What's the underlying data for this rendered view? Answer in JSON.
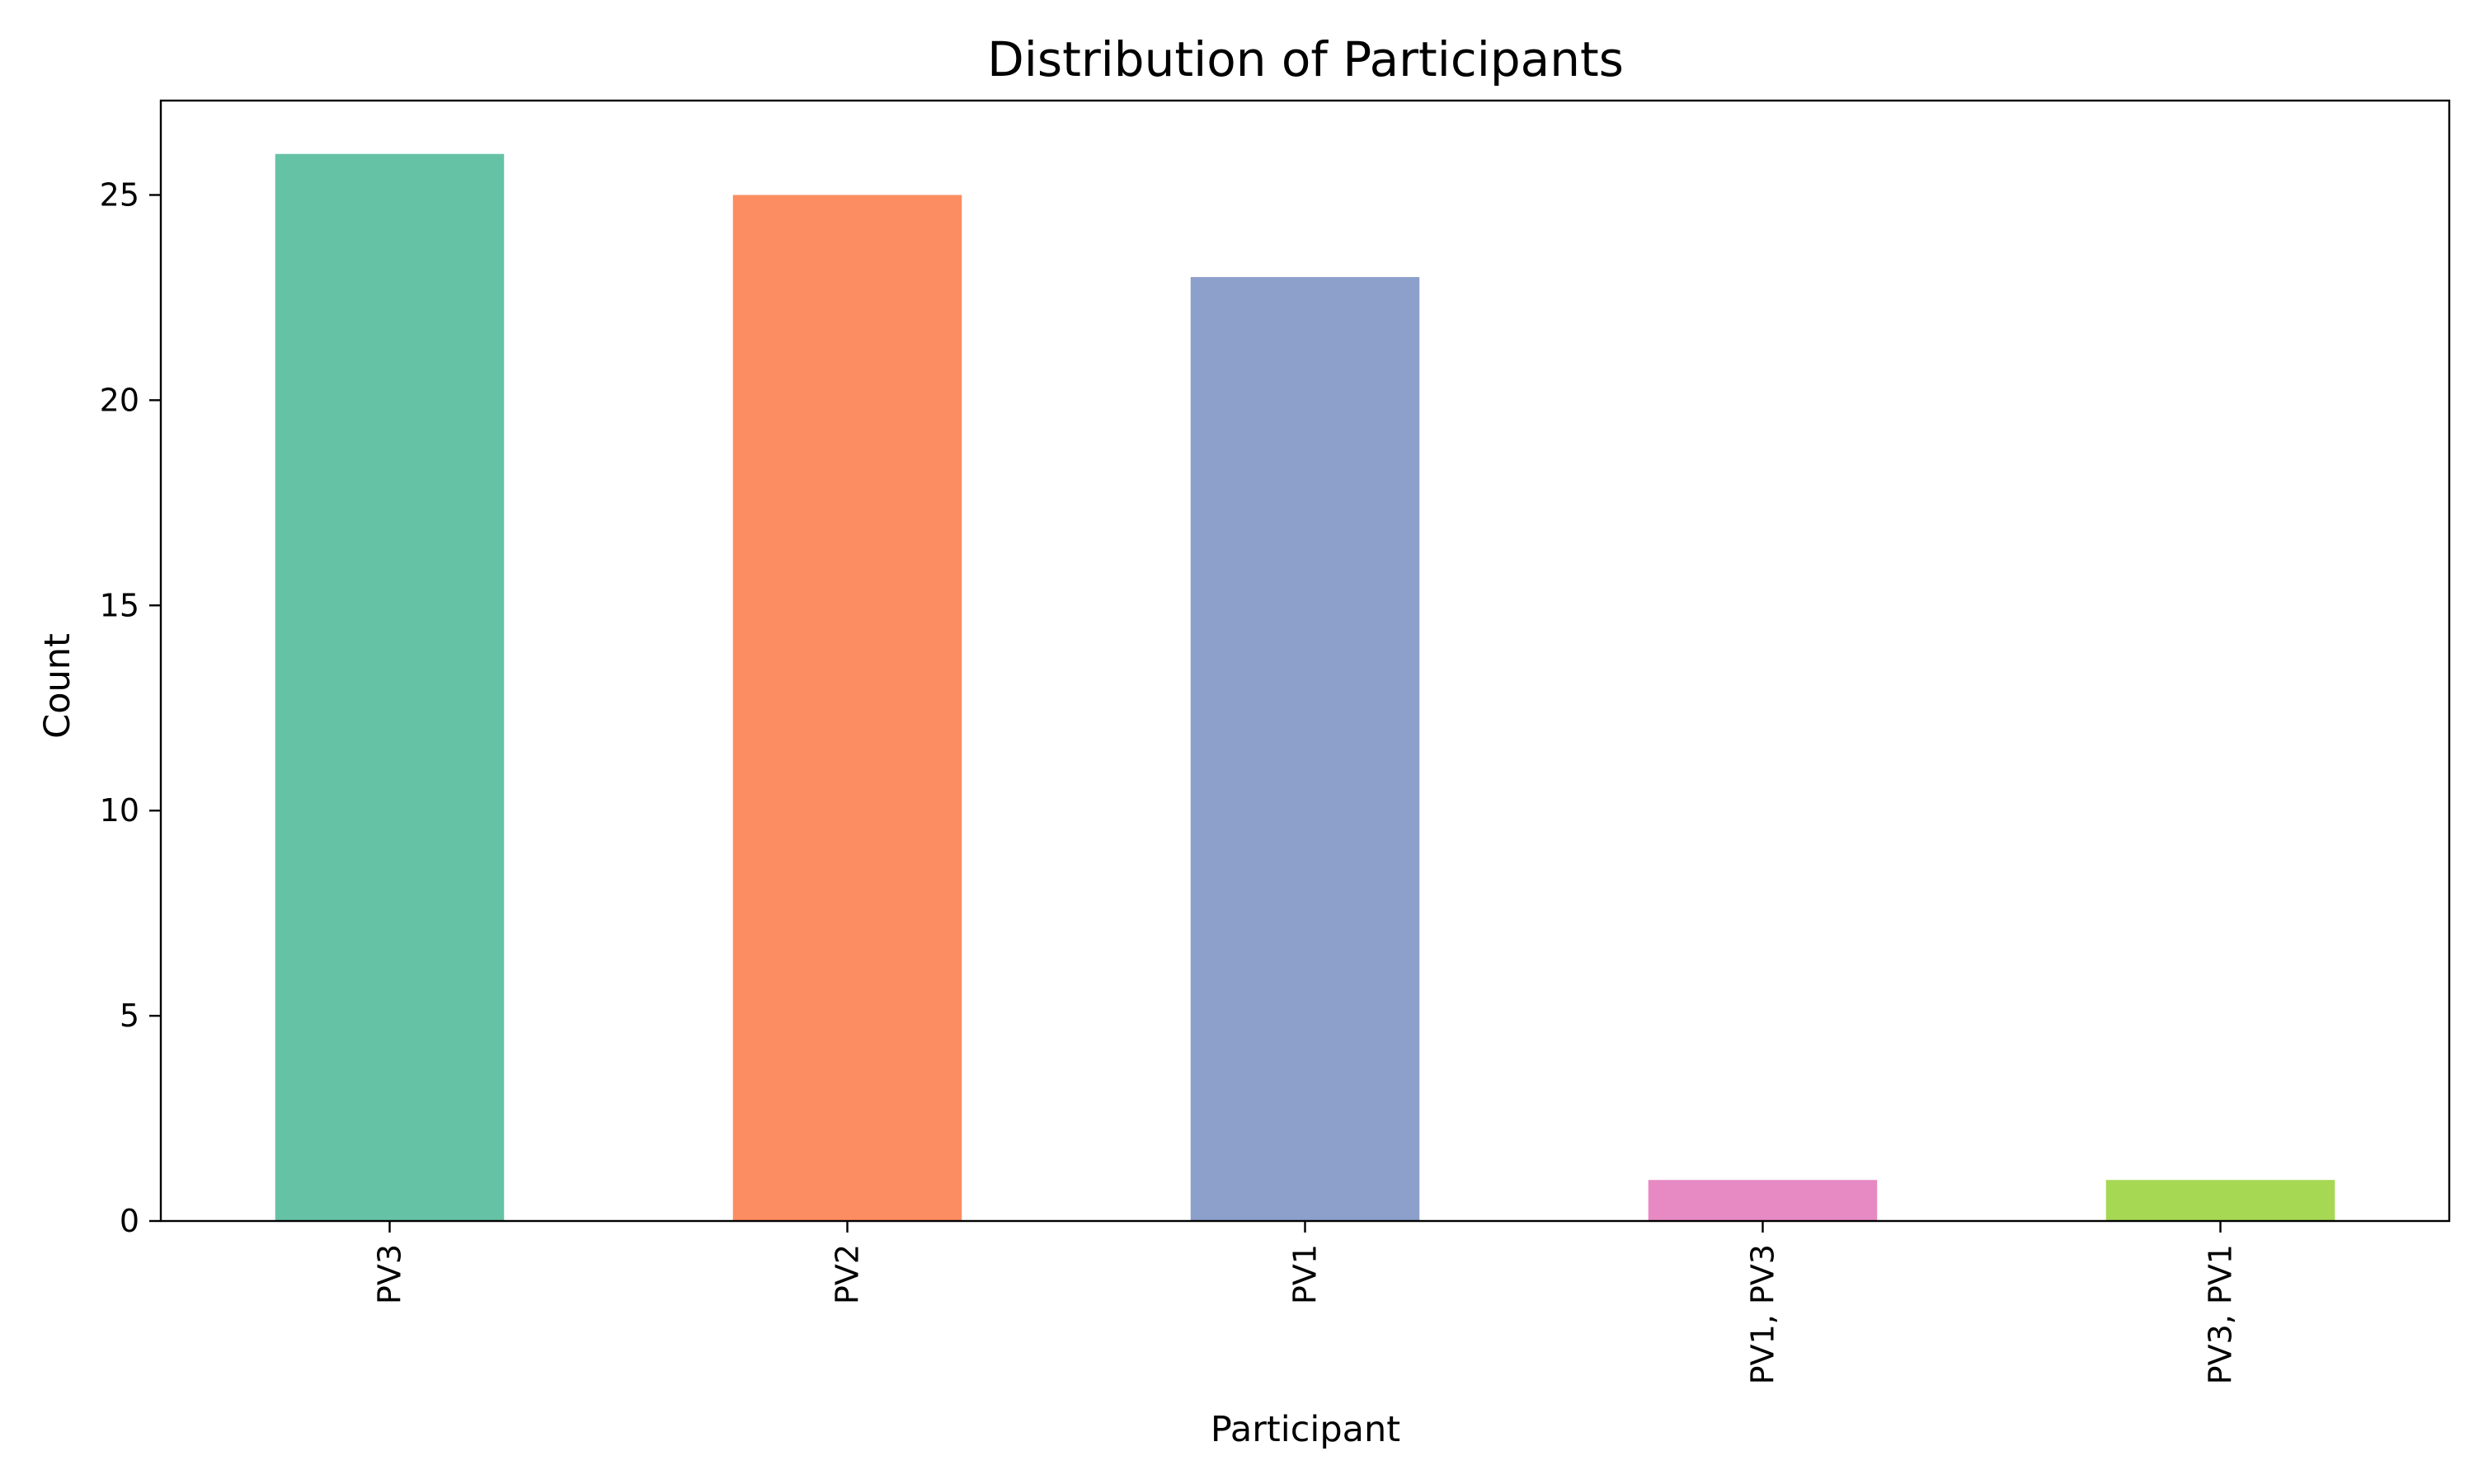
{
  "chart_data": {
    "type": "bar",
    "title": "Distribution of Participants",
    "xlabel": "Participant",
    "ylabel": "Count",
    "categories": [
      "PV3",
      "PV2",
      "PV1",
      "PV1, PV3",
      "PV3, PV1"
    ],
    "values": [
      26,
      25,
      23,
      1,
      1
    ],
    "colors": [
      "#66c2a5",
      "#fc8d62",
      "#8da0cb",
      "#e78ac3",
      "#a6d854"
    ],
    "ylim": [
      0,
      27.3
    ],
    "yticks": [
      0,
      5,
      10,
      15,
      20,
      25
    ],
    "grid": false,
    "legend": "none"
  }
}
